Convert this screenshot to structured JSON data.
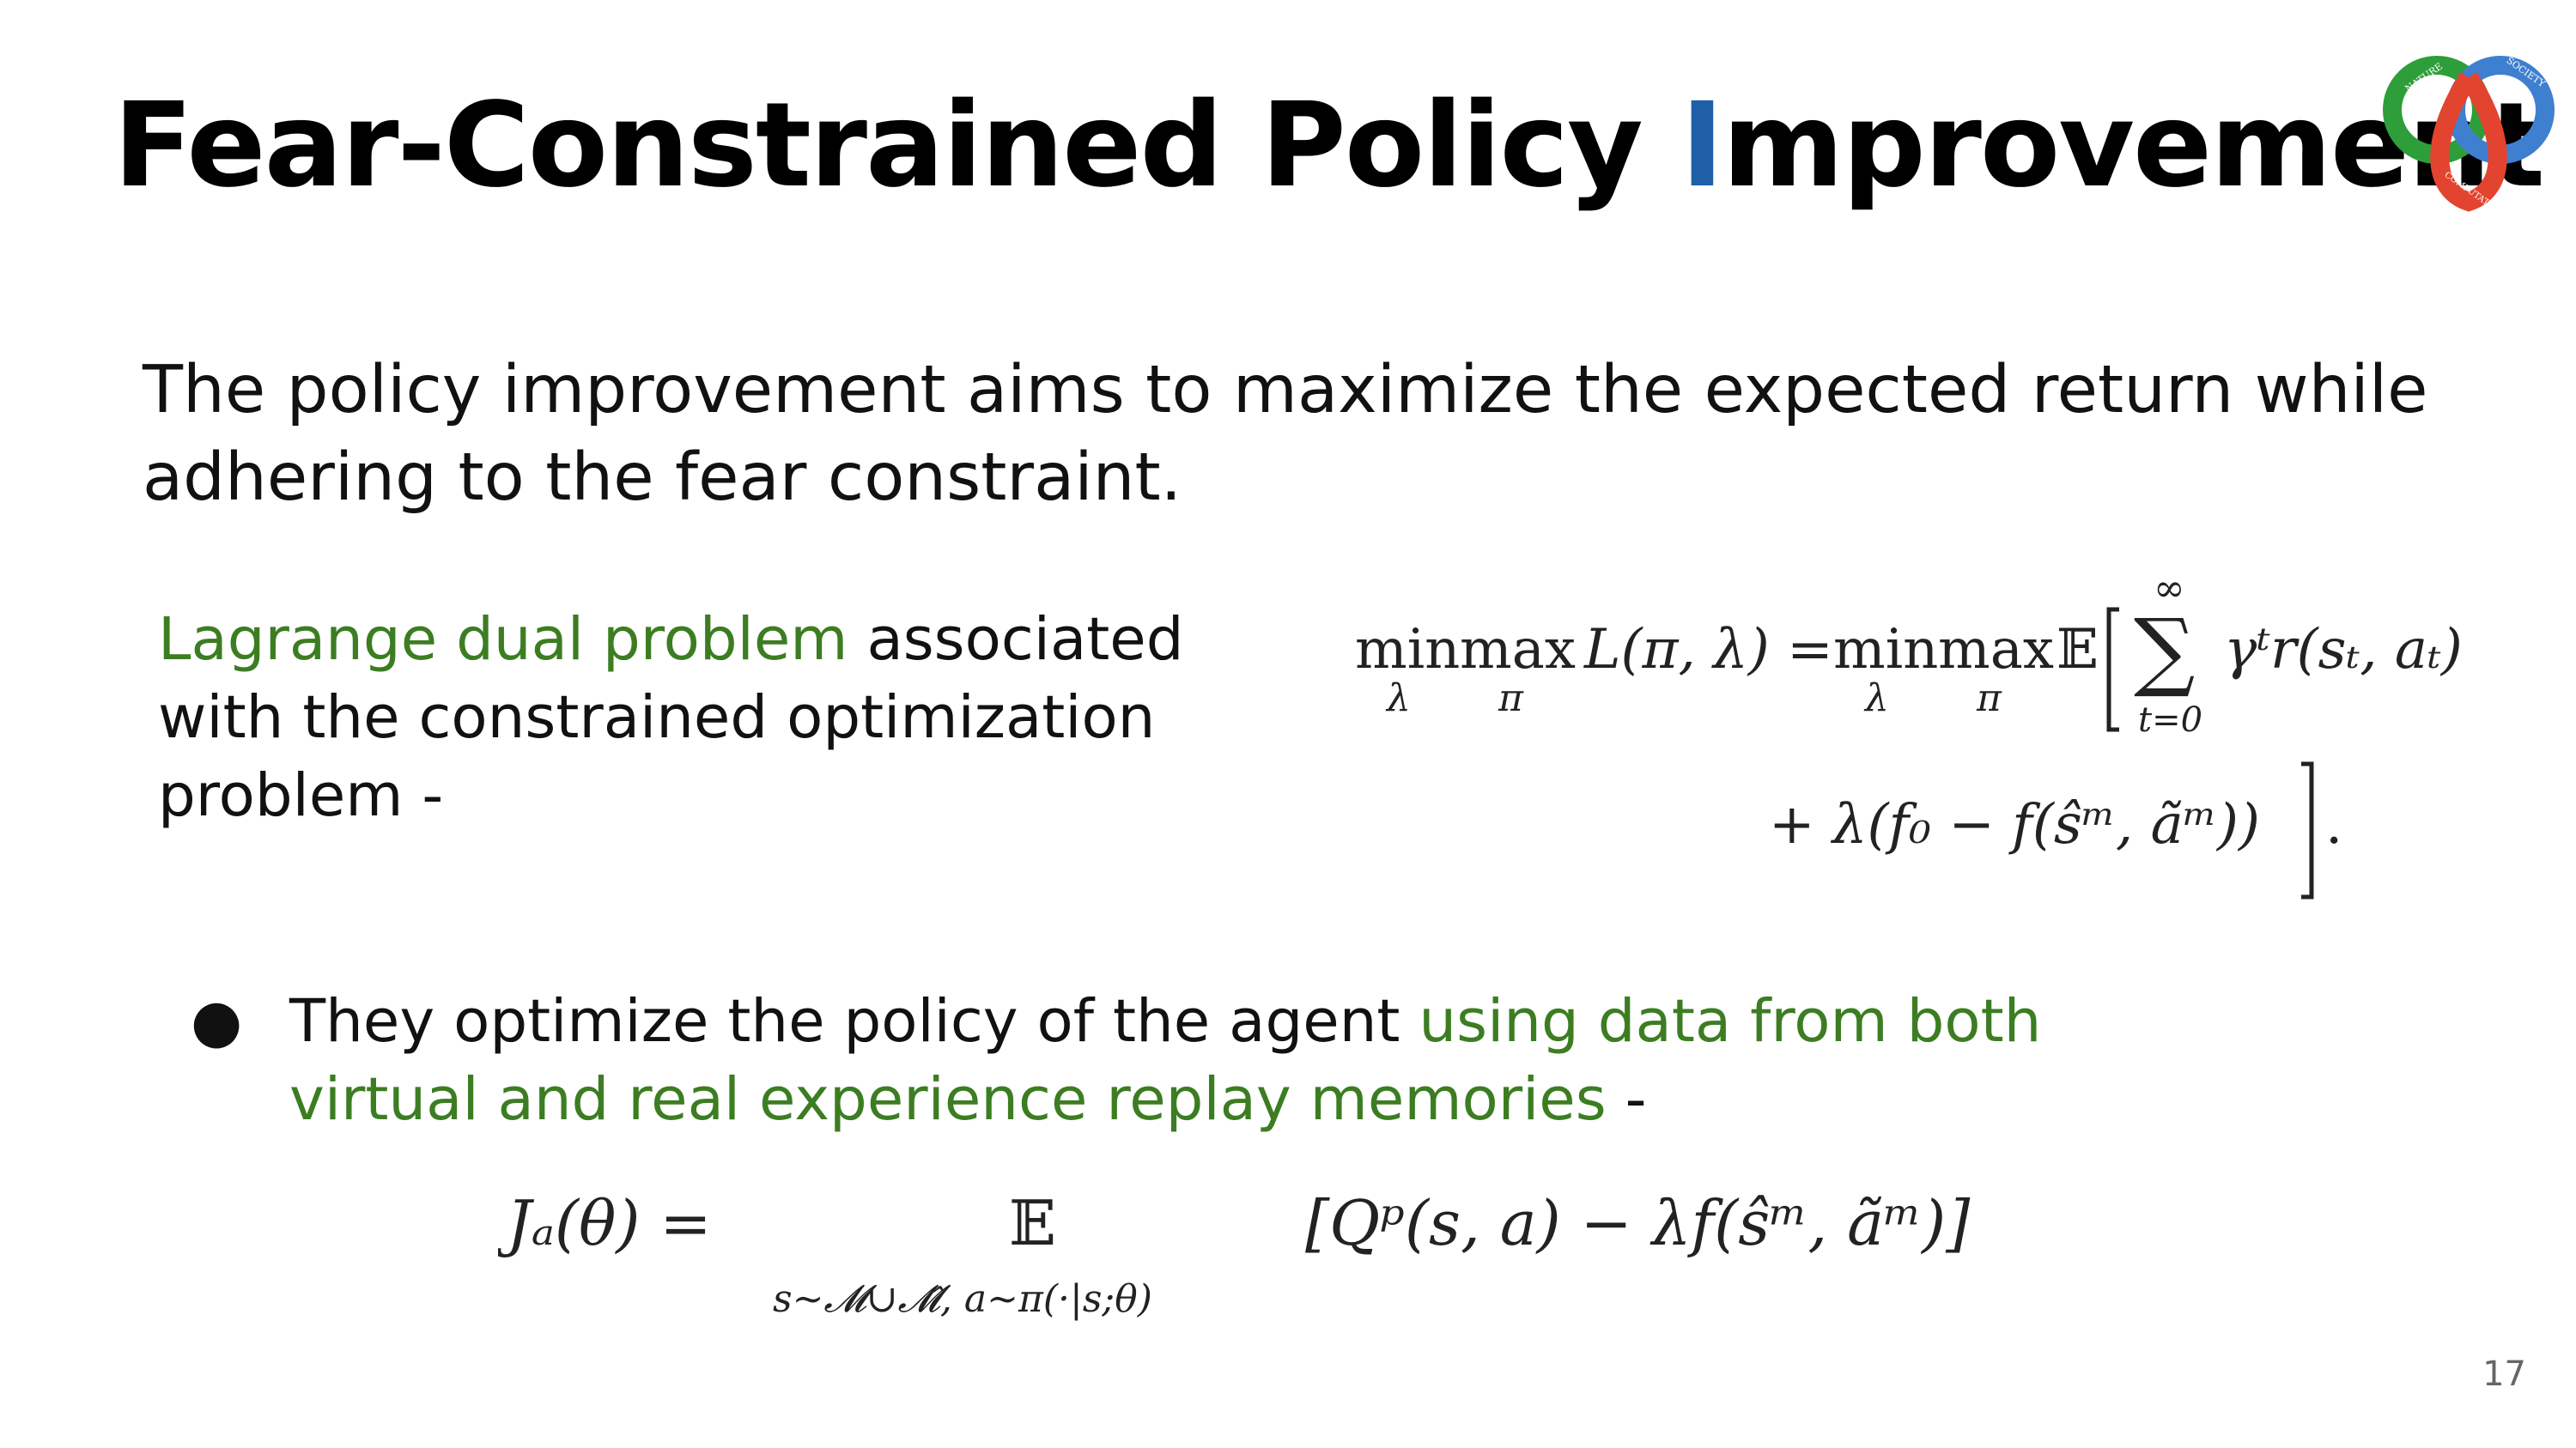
{
  "title": {
    "part1": "Fear-Constrained Policy ",
    "highlight": "I",
    "part2": "mprovement"
  },
  "intro": "The policy improvement aims to maximize the expected return while adhering to the fear constraint.",
  "lagrange": {
    "green": "Lagrange dual problem",
    "rest": " associated with the constrained optimization problem -"
  },
  "equation1": {
    "min": "min",
    "max": "max",
    "lambda": "λ",
    "pi": "π",
    "lhs_fn": "L(π, λ) =",
    "expect": "𝔼",
    "sum": "∑",
    "sum_top": "∞",
    "sum_bottom": "t=0",
    "summand": "γᵗr(sₜ, aₜ)",
    "line2": "+ λ(f₀ − f(ŝᵐ, ãᵐ))",
    "period": "."
  },
  "bullet": {
    "dot": "●",
    "text1": "They optimize the policy of the agent ",
    "green": "using data from both virtual and real experience replay memories",
    "text2": " -"
  },
  "equation2": {
    "lhs": "Jₐ(θ) =",
    "expect": "𝔼",
    "subscript": "s∼𝓜∪𝓜̂, a∼π(·|s;θ)",
    "body": "[Qᵖ(s, a) − λf(ŝᵐ, ãᵐ)]"
  },
  "logo": {
    "label_top_left": "NATURE",
    "label_top_right": "SOCIETY",
    "label_bottom": "COMPUTATION",
    "colors": {
      "green": "#2e9e3a",
      "blue": "#3e7fd0",
      "red": "#e2442f"
    }
  },
  "slide_number": "17"
}
